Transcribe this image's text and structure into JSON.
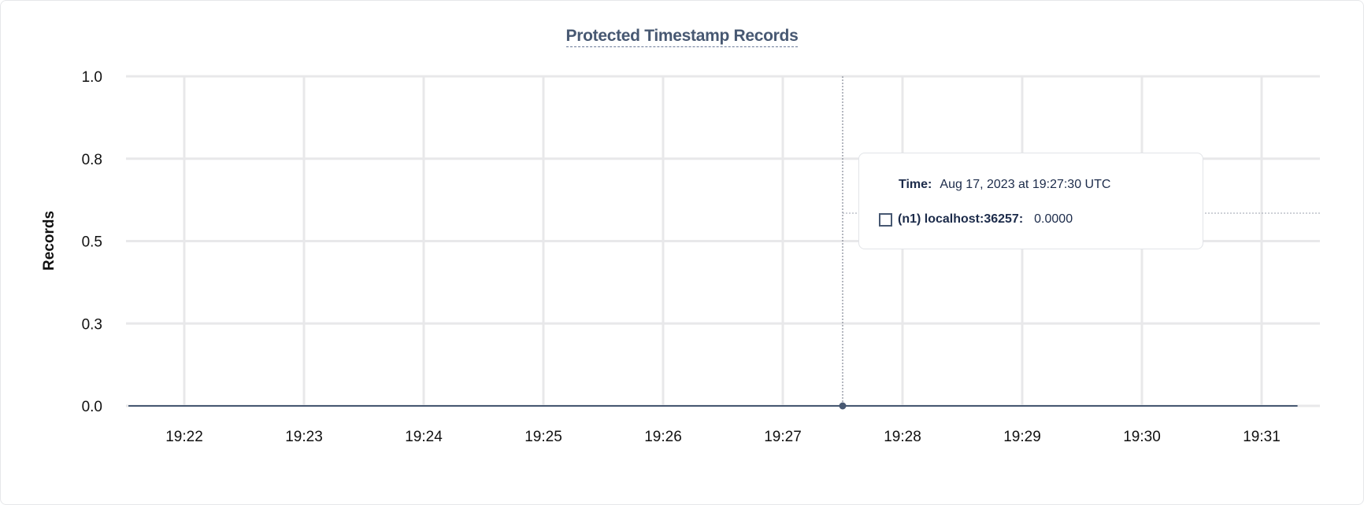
{
  "chart_data": {
    "type": "line",
    "title": "Protected Timestamp Records",
    "ylabel": "Records",
    "xlabel": "",
    "ylim": [
      0,
      1.0
    ],
    "y_ticks": [
      "0.0",
      "0.3",
      "0.5",
      "0.8",
      "1.0"
    ],
    "x_ticks": [
      "19:22",
      "19:23",
      "19:24",
      "19:25",
      "19:26",
      "19:27",
      "19:28",
      "19:29",
      "19:30",
      "19:31"
    ],
    "grid": true,
    "series": [
      {
        "name": "(n1) localhost:36257",
        "color": "#475872",
        "x": [
          "19:21:32",
          "19:31:18"
        ],
        "y": [
          0,
          0
        ]
      }
    ],
    "hover": {
      "x": "19:27:30",
      "value": 0
    }
  },
  "tooltip": {
    "time_label": "Time:",
    "time_value": "Aug 17, 2023 at 19:27:30 UTC",
    "series_label": "(n1) localhost:36257:",
    "series_value": "0.0000"
  }
}
